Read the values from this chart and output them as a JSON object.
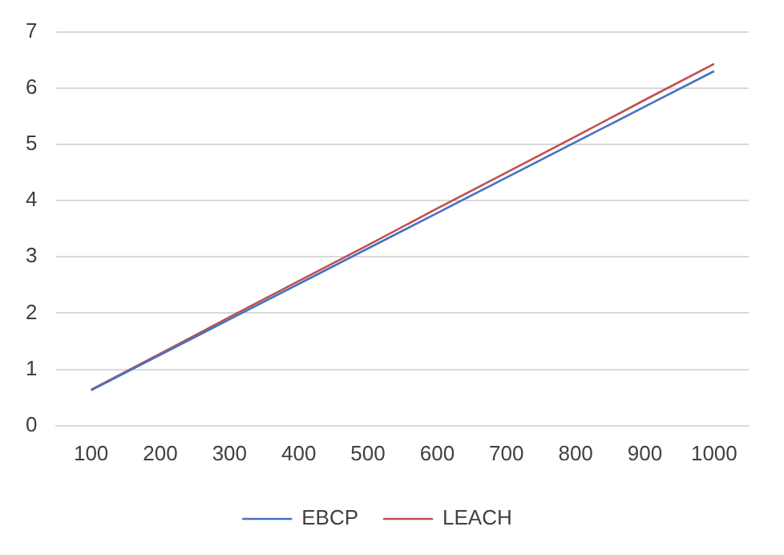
{
  "chart_data": {
    "type": "line",
    "categories": [
      "100",
      "200",
      "300",
      "400",
      "500",
      "600",
      "700",
      "800",
      "900",
      "1000"
    ],
    "series": [
      {
        "name": "EBCP",
        "color": "#4472c4",
        "values": [
          0.63,
          1.26,
          1.89,
          2.52,
          3.15,
          3.78,
          4.41,
          5.04,
          5.67,
          6.3
        ]
      },
      {
        "name": "LEACH",
        "color": "#c0504d",
        "values": [
          0.64,
          1.28,
          1.93,
          2.57,
          3.21,
          3.86,
          4.5,
          5.14,
          5.79,
          6.43
        ]
      }
    ],
    "ylim": [
      0,
      7
    ],
    "yticks": [
      0,
      1,
      2,
      3,
      4,
      5,
      6,
      7
    ],
    "grid": "y",
    "legend": "bottom",
    "marker": "none",
    "line_style": "solid"
  }
}
